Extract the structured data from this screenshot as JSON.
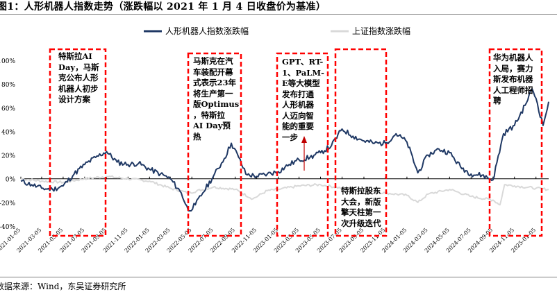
{
  "figure": {
    "title": "图1：人形机器人指数走势（涨跌幅以 2021 年 1 月 4 日收盘价为基准）",
    "source": "数据来源：Wind，东吴证券研究所"
  },
  "colors": {
    "humanoid": "#1f3864",
    "shanghai": "#d9d9d9",
    "box": "#ff0000",
    "arrow": "#c00000"
  },
  "annotations": [
    {
      "id": "a1",
      "text": "特斯拉AI Day，马斯克公布人形机器人初步设计方案",
      "lines": [
        "特斯拉AI",
        "Day，马斯",
        "克公布人形",
        "机器人初步",
        "设计方案"
      ]
    },
    {
      "id": "a2",
      "text": "马斯克在汽车装配开幕式表示23年将生产第一版Optimus，特斯拉AI Day预热",
      "lines": [
        "马斯克在汽",
        "车装配开幕",
        "式表示23年",
        "将生产第一",
        "版Optimus",
        "，特斯拉",
        "AI Day预",
        "热"
      ]
    },
    {
      "id": "a3",
      "text": "GPT、RT-1、PaLM-E等大模型发布打通人形机器人迈向智能的重要一步",
      "lines": [
        "GPT、RT-",
        "1、PaLM-",
        "E等大模型",
        "发布打通",
        "人形机器",
        "人迈向智",
        "能的重要",
        "一步"
      ]
    },
    {
      "id": "a4",
      "text": "特斯拉股东大会，新版擎天柱第一次升级迭代",
      "lines": [
        "特斯拉股东",
        "大会，新版",
        "擎天柱第一",
        "次升级迭代"
      ]
    },
    {
      "id": "a5",
      "text": "华为机器人入局，赛力斯发布机器人工程师招聘",
      "lines": [
        "华为机器人",
        "入局，赛力",
        "斯发布机器",
        "人工程师招",
        "聘"
      ]
    }
  ],
  "chart_data": {
    "type": "line",
    "title": "",
    "xlabel": "",
    "ylabel": "",
    "ylim": [
      -0.4,
      1.0
    ],
    "y_tick_values": [
      -0.4,
      -0.2,
      0.0,
      0.2,
      0.4,
      0.6,
      0.8,
      1.0
    ],
    "y_ticks": [
      "-40%",
      "-20%",
      "0%",
      "20%",
      "40%",
      "60%",
      "80%",
      "100%"
    ],
    "x_ticks": [
      "2021-01-05",
      "2021-03-05",
      "2021-05-05",
      "2021-07-05",
      "2021-09-05",
      "2021-11-05",
      "2022-01-05",
      "2022-03-05",
      "2022-05-05",
      "2022-07-05",
      "2022-09-05",
      "2022-11-05",
      "2023-01-05",
      "2023-03-05",
      "2023-05-05",
      "2023-07-05",
      "2023-09-05",
      "2023-11-05",
      "2024-01-05",
      "2024-03-05",
      "2024-05-05",
      "2024-07-05",
      "2024-09-05",
      "2024-11-05",
      "2025-01-05"
    ],
    "legend": {
      "placement": "top-center"
    },
    "grid": false,
    "series": [
      {
        "name": "人形机器人指数涨跌幅",
        "points": [
          [
            "2021-01-05",
            -0.02
          ],
          [
            "2021-02-05",
            -0.05
          ],
          [
            "2021-03-05",
            -0.08
          ],
          [
            "2021-04-05",
            -0.09
          ],
          [
            "2021-05-05",
            -0.06
          ],
          [
            "2021-06-05",
            0.04
          ],
          [
            "2021-07-05",
            0.12
          ],
          [
            "2021-08-05",
            0.18
          ],
          [
            "2021-09-05",
            0.23
          ],
          [
            "2021-10-05",
            0.14
          ],
          [
            "2021-11-05",
            0.12
          ],
          [
            "2021-12-05",
            0.13
          ],
          [
            "2022-01-05",
            0.08
          ],
          [
            "2022-02-05",
            0.04
          ],
          [
            "2022-03-05",
            0.0
          ],
          [
            "2022-04-05",
            -0.12
          ],
          [
            "2022-04-25",
            -0.27
          ],
          [
            "2022-05-15",
            -0.22
          ],
          [
            "2022-06-05",
            -0.12
          ],
          [
            "2022-07-05",
            0.02
          ],
          [
            "2022-08-05",
            0.17
          ],
          [
            "2022-08-25",
            0.3
          ],
          [
            "2022-09-15",
            0.18
          ],
          [
            "2022-10-05",
            0.04
          ],
          [
            "2022-11-05",
            0.02
          ],
          [
            "2022-12-05",
            0.04
          ],
          [
            "2023-01-05",
            0.06
          ],
          [
            "2023-02-05",
            0.12
          ],
          [
            "2023-03-05",
            0.16
          ],
          [
            "2023-04-05",
            0.18
          ],
          [
            "2023-05-05",
            0.22
          ],
          [
            "2023-06-05",
            0.28
          ],
          [
            "2023-07-05",
            0.42
          ],
          [
            "2023-08-05",
            0.36
          ],
          [
            "2023-09-05",
            0.32
          ],
          [
            "2023-10-05",
            0.3
          ],
          [
            "2023-11-05",
            0.3
          ],
          [
            "2023-12-05",
            0.38
          ],
          [
            "2024-01-05",
            0.31
          ],
          [
            "2024-02-05",
            0.05
          ],
          [
            "2024-03-05",
            0.2
          ],
          [
            "2024-04-05",
            0.25
          ],
          [
            "2024-05-05",
            0.22
          ],
          [
            "2024-06-05",
            0.1
          ],
          [
            "2024-07-05",
            0.04
          ],
          [
            "2024-08-05",
            0.03
          ],
          [
            "2024-09-05",
            -0.01
          ],
          [
            "2024-10-05",
            0.38
          ],
          [
            "2024-11-05",
            0.45
          ],
          [
            "2024-12-05",
            0.62
          ],
          [
            "2024-12-25",
            0.76
          ],
          [
            "2025-01-05",
            0.68
          ],
          [
            "2025-01-25",
            0.45
          ],
          [
            "2025-02-10",
            0.65
          ]
        ]
      },
      {
        "name": "上证指数涨跌幅",
        "points": [
          [
            "2021-01-05",
            0.0
          ],
          [
            "2021-03-05",
            -0.02
          ],
          [
            "2021-05-05",
            -0.03
          ],
          [
            "2021-07-05",
            0.0
          ],
          [
            "2021-09-05",
            0.02
          ],
          [
            "2021-11-05",
            0.0
          ],
          [
            "2022-01-05",
            -0.02
          ],
          [
            "2022-03-05",
            -0.08
          ],
          [
            "2022-04-25",
            -0.12
          ],
          [
            "2022-07-05",
            -0.07
          ],
          [
            "2022-09-05",
            -0.09
          ],
          [
            "2022-10-25",
            -0.17
          ],
          [
            "2022-12-05",
            -0.1
          ],
          [
            "2023-01-05",
            -0.09
          ],
          [
            "2023-03-05",
            -0.06
          ],
          [
            "2023-05-05",
            -0.05
          ],
          [
            "2023-07-05",
            -0.08
          ],
          [
            "2023-09-05",
            -0.1
          ],
          [
            "2023-11-05",
            -0.12
          ],
          [
            "2024-01-05",
            -0.14
          ],
          [
            "2024-02-05",
            -0.2
          ],
          [
            "2024-03-05",
            -0.13
          ],
          [
            "2024-05-05",
            -0.09
          ],
          [
            "2024-07-05",
            -0.15
          ],
          [
            "2024-09-05",
            -0.18
          ],
          [
            "2024-09-25",
            -0.22
          ],
          [
            "2024-10-08",
            -0.05
          ],
          [
            "2024-11-05",
            -0.06
          ],
          [
            "2025-01-05",
            -0.08
          ],
          [
            "2025-02-10",
            -0.09
          ]
        ]
      }
    ]
  }
}
